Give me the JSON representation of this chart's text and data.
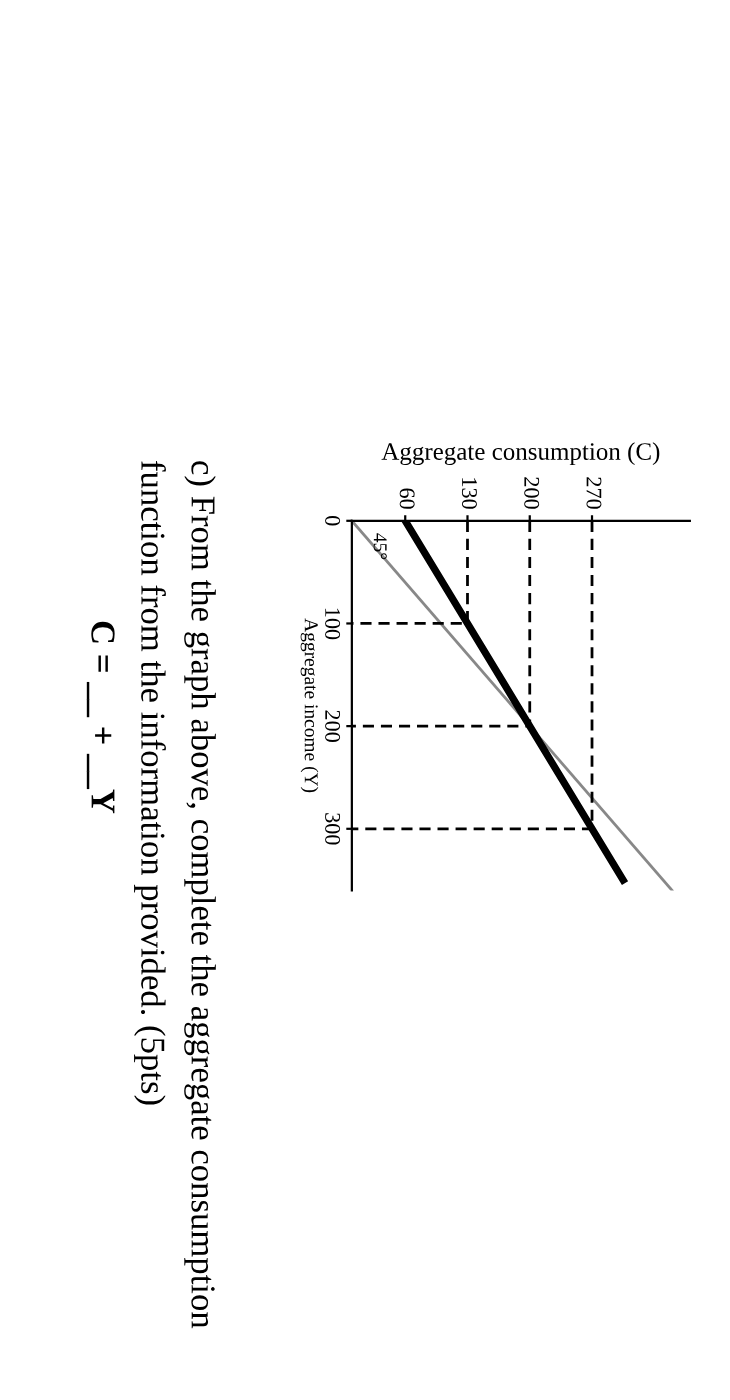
{
  "chart_data": {
    "type": "line",
    "orientation": "horizontal",
    "xlabel": "Aggregate consumption (C)",
    "ylabel": "Aggregate income (Y)",
    "xlim": [
      0,
      380
    ],
    "xticks": [
      60,
      130,
      200,
      270
    ],
    "ylim": [
      360,
      0
    ],
    "yticks": [
      0,
      100,
      200,
      300
    ],
    "grid": false,
    "legend": false,
    "marker": "none",
    "series": [
      {
        "color": "#888888",
        "x": [
          0,
          360
        ],
        "values": [
          0,
          360
        ]
      },
      {
        "color": "#000000",
        "x": [
          0,
          350
        ],
        "values": [
          60,
          305
        ]
      },
      {
        "color": "#000000",
        "line_style": "dashed",
        "x": [
          0,
          100,
          100
        ],
        "values": [
          130,
          130,
          0
        ]
      },
      {
        "color": "#000000",
        "line_style": "dashed",
        "x": [
          0,
          200,
          200
        ],
        "values": [
          200,
          200,
          0
        ]
      },
      {
        "color": "#000000",
        "line_style": "dashed",
        "x": [
          0,
          300,
          300
        ],
        "values": [
          270,
          270,
          0
        ]
      }
    ],
    "annotations": [
      {
        "text": "45°",
        "x": 25,
        "y": 30
      },
      "c) From the graph above, complete the aggregate consumption",
      "function from the information provided. (5pts)",
      "C = __ + __Y"
    ]
  }
}
